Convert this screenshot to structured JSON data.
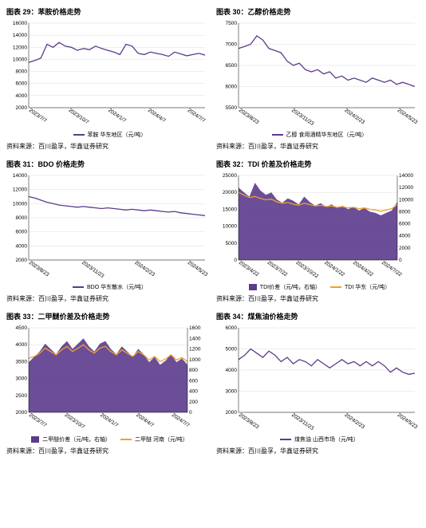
{
  "source_text": "资料来源：百川盈孚，华鑫证券研究",
  "colors": {
    "purple": "#5b3b8c",
    "orange": "#f0a030",
    "area": "#5b3b8c",
    "axis": "#000000",
    "grid": "#dddddd",
    "bg": "#ffffff"
  },
  "panels": [
    {
      "id": "c29",
      "title": "图表 29：苯胺价格走势",
      "type": "line",
      "legend": [
        {
          "label": "苯胺 华东地区（元/吨）",
          "color": "#5b3b8c",
          "kind": "line"
        }
      ],
      "x_labels": [
        "2023/7/7",
        "2023/10/7",
        "2024/1/7",
        "2024/4/7",
        "2024/7/7"
      ],
      "y_min": 2000,
      "y_max": 16000,
      "y_step": 2000,
      "series": [
        {
          "color": "#5b3b8c",
          "values": [
            9500,
            9800,
            10200,
            12500,
            12000,
            12800,
            12200,
            12000,
            11500,
            11800,
            11600,
            12200,
            11800,
            11500,
            11200,
            10800,
            12500,
            12200,
            11000,
            10800,
            11200,
            11000,
            10800,
            10500,
            11200,
            10900,
            10600,
            10800,
            11000,
            10700
          ]
        }
      ]
    },
    {
      "id": "c30",
      "title": "图表 30：乙醇价格走势",
      "type": "line",
      "legend": [
        {
          "label": "乙醇 食用酒精华东地区（元/吨）",
          "color": "#5b3b8c",
          "kind": "line"
        }
      ],
      "x_labels": [
        "2023/8/23",
        "2023/11/23",
        "2024/2/23",
        "2024/5/23"
      ],
      "y_min": 5500,
      "y_max": 7500,
      "y_step": 500,
      "series": [
        {
          "color": "#5b3b8c",
          "values": [
            6900,
            6950,
            7000,
            7200,
            7100,
            6900,
            6850,
            6800,
            6600,
            6500,
            6550,
            6400,
            6350,
            6400,
            6300,
            6350,
            6200,
            6250,
            6150,
            6200,
            6150,
            6100,
            6200,
            6150,
            6100,
            6150,
            6050,
            6100,
            6050,
            6000
          ]
        }
      ]
    },
    {
      "id": "c31",
      "title": "图表 31：BDO 价格走势",
      "type": "line",
      "legend": [
        {
          "label": "BDO 华东散水（元/吨）",
          "color": "#5b3b8c",
          "kind": "line"
        }
      ],
      "x_labels": [
        "2023/8/23",
        "2023/11/23",
        "2024/2/23",
        "2024/5/23"
      ],
      "y_min": 2000,
      "y_max": 14000,
      "y_step": 2000,
      "series": [
        {
          "color": "#5b3b8c",
          "values": [
            11000,
            10800,
            10500,
            10200,
            10000,
            9800,
            9700,
            9600,
            9500,
            9600,
            9500,
            9400,
            9300,
            9400,
            9300,
            9200,
            9100,
            9200,
            9100,
            9000,
            9100,
            9000,
            8900,
            8800,
            8900,
            8700,
            8600,
            8500,
            8400,
            8300
          ]
        }
      ]
    },
    {
      "id": "c32",
      "title": "图表 32：TDI 价差及价格走势",
      "type": "area_line_dual",
      "legend": [
        {
          "label": "TDI价差（元/吨，右轴）",
          "color": "#5b3b8c",
          "kind": "area"
        },
        {
          "label": "TDI 华东（元/吨）",
          "color": "#f0a030",
          "kind": "line"
        }
      ],
      "x_labels": [
        "2023/4/22",
        "2023/7/22",
        "2023/10/22",
        "2024/1/22",
        "2024/4/22",
        "2024/7/22"
      ],
      "y_min": 0,
      "y_max": 25000,
      "y_step": 5000,
      "y2_min": 0,
      "y2_max": 14000,
      "y2_step": 2000,
      "series": [
        {
          "color": "#5b3b8c",
          "kind": "area",
          "axis": "right",
          "values": [
            12000,
            11200,
            10500,
            12800,
            11500,
            10800,
            11200,
            10000,
            9500,
            10200,
            9800,
            9200,
            10500,
            9600,
            9000,
            9400,
            8800,
            9200,
            8600,
            9000,
            8400,
            8800,
            8200,
            8600,
            8000,
            7800,
            7400,
            7800,
            8200,
            9600
          ]
        },
        {
          "color": "#f0a030",
          "kind": "line",
          "axis": "left",
          "values": [
            20000,
            19200,
            18500,
            18800,
            18200,
            17800,
            18000,
            17200,
            16800,
            17000,
            16500,
            16200,
            16800,
            16400,
            16000,
            16200,
            15800,
            16000,
            15600,
            15800,
            15400,
            15600,
            15200,
            15400,
            15000,
            14800,
            14400,
            14800,
            15200,
            16400
          ]
        }
      ]
    },
    {
      "id": "c33",
      "title": "图表 33：二甲醚价差及价格走势",
      "type": "area_line_dual",
      "legend": [
        {
          "label": "二甲醚价差（元/吨，右轴）",
          "color": "#5b3b8c",
          "kind": "area"
        },
        {
          "label": "二甲醚 河南（元/吨）",
          "color": "#f0a030",
          "kind": "line"
        }
      ],
      "x_labels": [
        "2023/7/7",
        "2023/10/7",
        "2024/1/7",
        "2024/4/7",
        "2024/7/7"
      ],
      "y_min": 2000,
      "y_max": 4500,
      "y_step": 500,
      "y2_min": 0,
      "y2_max": 1600,
      "y2_step": 200,
      "series": [
        {
          "color": "#5b3b8c",
          "kind": "area",
          "axis": "right",
          "values": [
            950,
            1050,
            1150,
            1300,
            1200,
            1100,
            1250,
            1350,
            1200,
            1300,
            1400,
            1250,
            1150,
            1300,
            1350,
            1200,
            1100,
            1250,
            1150,
            1050,
            1200,
            1100,
            950,
            1050,
            900,
            980,
            1100,
            950,
            1020,
            900
          ]
        },
        {
          "color": "#f0a030",
          "kind": "line",
          "axis": "left",
          "values": [
            3600,
            3650,
            3750,
            3900,
            3800,
            3700,
            3850,
            3950,
            3800,
            3900,
            4000,
            3850,
            3750,
            3900,
            3950,
            3800,
            3700,
            3850,
            3750,
            3650,
            3800,
            3700,
            3550,
            3650,
            3500,
            3580,
            3700,
            3550,
            3620,
            3500
          ]
        }
      ]
    },
    {
      "id": "c34",
      "title": "图表 34：煤焦油价格走势",
      "type": "line",
      "legend": [
        {
          "label": "煤焦油 山西市场（元/吨）",
          "color": "#5b3b8c",
          "kind": "line"
        }
      ],
      "x_labels": [
        "2023/8/23",
        "2023/11/23",
        "2024/2/23",
        "2024/5/23"
      ],
      "y_min": 2000,
      "y_max": 6000,
      "y_step": 1000,
      "series": [
        {
          "color": "#5b3b8c",
          "values": [
            4500,
            4700,
            5000,
            4800,
            4600,
            4900,
            4700,
            4400,
            4600,
            4300,
            4500,
            4400,
            4200,
            4500,
            4300,
            4100,
            4300,
            4500,
            4300,
            4400,
            4200,
            4400,
            4200,
            4400,
            4200,
            3900,
            4100,
            3900,
            3800,
            3850
          ]
        }
      ]
    }
  ]
}
